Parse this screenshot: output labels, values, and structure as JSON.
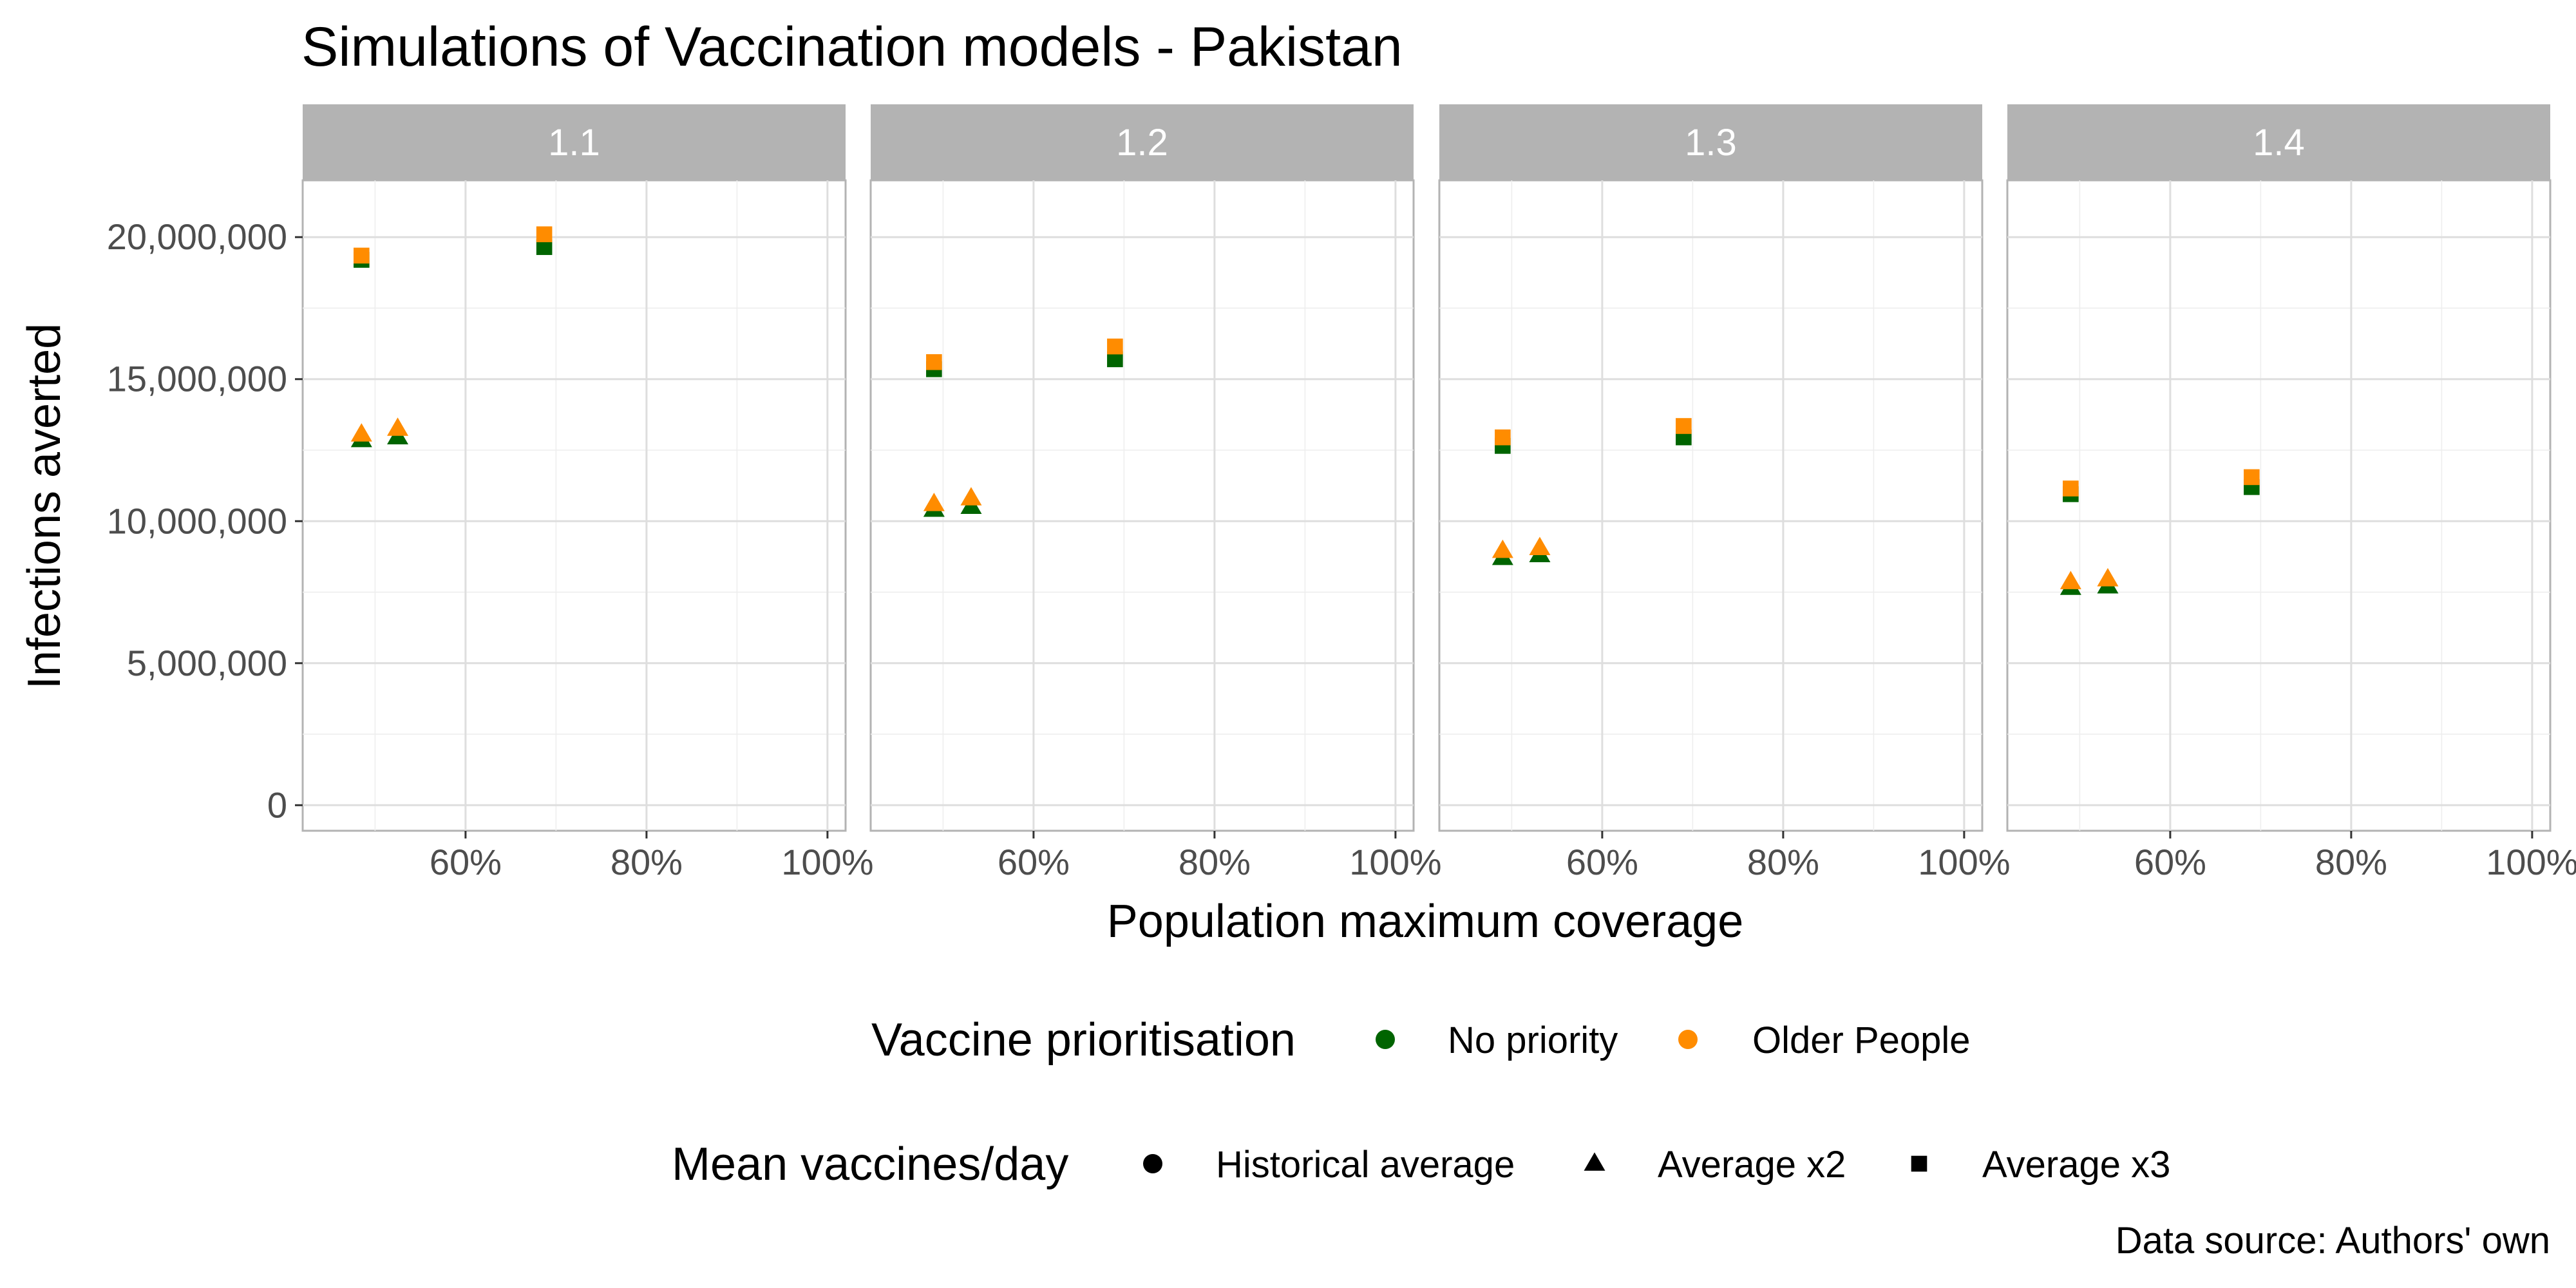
{
  "chart_data": {
    "type": "scatter",
    "title": "Simulations of Vaccination models - Pakistan",
    "xlabel": "Population maximum coverage",
    "ylabel": "Infections averted",
    "caption": "Data source: Authors' own",
    "xlim": [
      0.42,
      1.02
    ],
    "ylim": [
      -900000,
      22000000
    ],
    "x_ticks": [
      {
        "value": 0.6,
        "label": "60%"
      },
      {
        "value": 0.8,
        "label": "80%"
      },
      {
        "value": 1.0,
        "label": "100%"
      }
    ],
    "y_ticks": [
      {
        "value": 0,
        "label": "0"
      },
      {
        "value": 5000000,
        "label": "5,000,000"
      },
      {
        "value": 10000000,
        "label": "10,000,000"
      },
      {
        "value": 15000000,
        "label": "15,000,000"
      },
      {
        "value": 20000000,
        "label": "20,000,000"
      }
    ],
    "grid": true,
    "colors": {
      "No priority": "#006400",
      "Older People": "#ff8c00"
    },
    "legend_color": {
      "title": "Vaccine prioritisation",
      "items": [
        {
          "label": "No priority",
          "color": "#006400"
        },
        {
          "label": "Older People",
          "color": "#ff8c00"
        }
      ]
    },
    "legend_shape": {
      "title": "Mean vaccines/day",
      "items": [
        {
          "label": "Historical average",
          "shape": "circle"
        },
        {
          "label": "Average x2",
          "shape": "triangle"
        },
        {
          "label": "Average x3",
          "shape": "square"
        }
      ]
    },
    "legend_placement": "bottom",
    "panels": [
      {
        "strip": "1.1",
        "points": [
          {
            "x": 0.485,
            "y": 12850000,
            "priority": "No priority",
            "rate": "Average x2"
          },
          {
            "x": 0.485,
            "y": 13050000,
            "priority": "Older People",
            "rate": "Average x2"
          },
          {
            "x": 0.525,
            "y": 12950000,
            "priority": "No priority",
            "rate": "Average x2"
          },
          {
            "x": 0.525,
            "y": 13250000,
            "priority": "Older People",
            "rate": "Average x2"
          },
          {
            "x": 0.485,
            "y": 19200000,
            "priority": "No priority",
            "rate": "Average x3"
          },
          {
            "x": 0.485,
            "y": 19350000,
            "priority": "Older People",
            "rate": "Average x3"
          },
          {
            "x": 0.687,
            "y": 19650000,
            "priority": "No priority",
            "rate": "Average x3"
          },
          {
            "x": 0.687,
            "y": 20100000,
            "priority": "Older People",
            "rate": "Average x3"
          }
        ]
      },
      {
        "strip": "1.2",
        "points": [
          {
            "x": 0.49,
            "y": 10400000,
            "priority": "No priority",
            "rate": "Average x2"
          },
          {
            "x": 0.49,
            "y": 10600000,
            "priority": "Older People",
            "rate": "Average x2"
          },
          {
            "x": 0.531,
            "y": 10500000,
            "priority": "No priority",
            "rate": "Average x2"
          },
          {
            "x": 0.531,
            "y": 10800000,
            "priority": "Older People",
            "rate": "Average x2"
          },
          {
            "x": 0.49,
            "y": 15350000,
            "priority": "No priority",
            "rate": "Average x3"
          },
          {
            "x": 0.49,
            "y": 15600000,
            "priority": "Older People",
            "rate": "Average x3"
          },
          {
            "x": 0.69,
            "y": 15700000,
            "priority": "No priority",
            "rate": "Average x3"
          },
          {
            "x": 0.69,
            "y": 16150000,
            "priority": "Older People",
            "rate": "Average x3"
          }
        ]
      },
      {
        "strip": "1.3",
        "points": [
          {
            "x": 0.49,
            "y": 8700000,
            "priority": "No priority",
            "rate": "Average x2"
          },
          {
            "x": 0.49,
            "y": 8950000,
            "priority": "Older People",
            "rate": "Average x2"
          },
          {
            "x": 0.531,
            "y": 8800000,
            "priority": "No priority",
            "rate": "Average x2"
          },
          {
            "x": 0.531,
            "y": 9050000,
            "priority": "Older People",
            "rate": "Average x2"
          },
          {
            "x": 0.49,
            "y": 12650000,
            "priority": "No priority",
            "rate": "Average x3"
          },
          {
            "x": 0.49,
            "y": 12950000,
            "priority": "Older People",
            "rate": "Average x3"
          },
          {
            "x": 0.69,
            "y": 12950000,
            "priority": "No priority",
            "rate": "Average x3"
          },
          {
            "x": 0.69,
            "y": 13350000,
            "priority": "Older People",
            "rate": "Average x3"
          }
        ]
      },
      {
        "strip": "1.4",
        "points": [
          {
            "x": 0.49,
            "y": 7650000,
            "priority": "No priority",
            "rate": "Average x2"
          },
          {
            "x": 0.49,
            "y": 7850000,
            "priority": "Older People",
            "rate": "Average x2"
          },
          {
            "x": 0.531,
            "y": 7700000,
            "priority": "No priority",
            "rate": "Average x2"
          },
          {
            "x": 0.531,
            "y": 7950000,
            "priority": "Older People",
            "rate": "Average x2"
          },
          {
            "x": 0.49,
            "y": 10950000,
            "priority": "No priority",
            "rate": "Average x3"
          },
          {
            "x": 0.49,
            "y": 11150000,
            "priority": "Older People",
            "rate": "Average x3"
          },
          {
            "x": 0.69,
            "y": 11200000,
            "priority": "No priority",
            "rate": "Average x3"
          },
          {
            "x": 0.69,
            "y": 11550000,
            "priority": "Older People",
            "rate": "Average x3"
          }
        ]
      }
    ]
  }
}
